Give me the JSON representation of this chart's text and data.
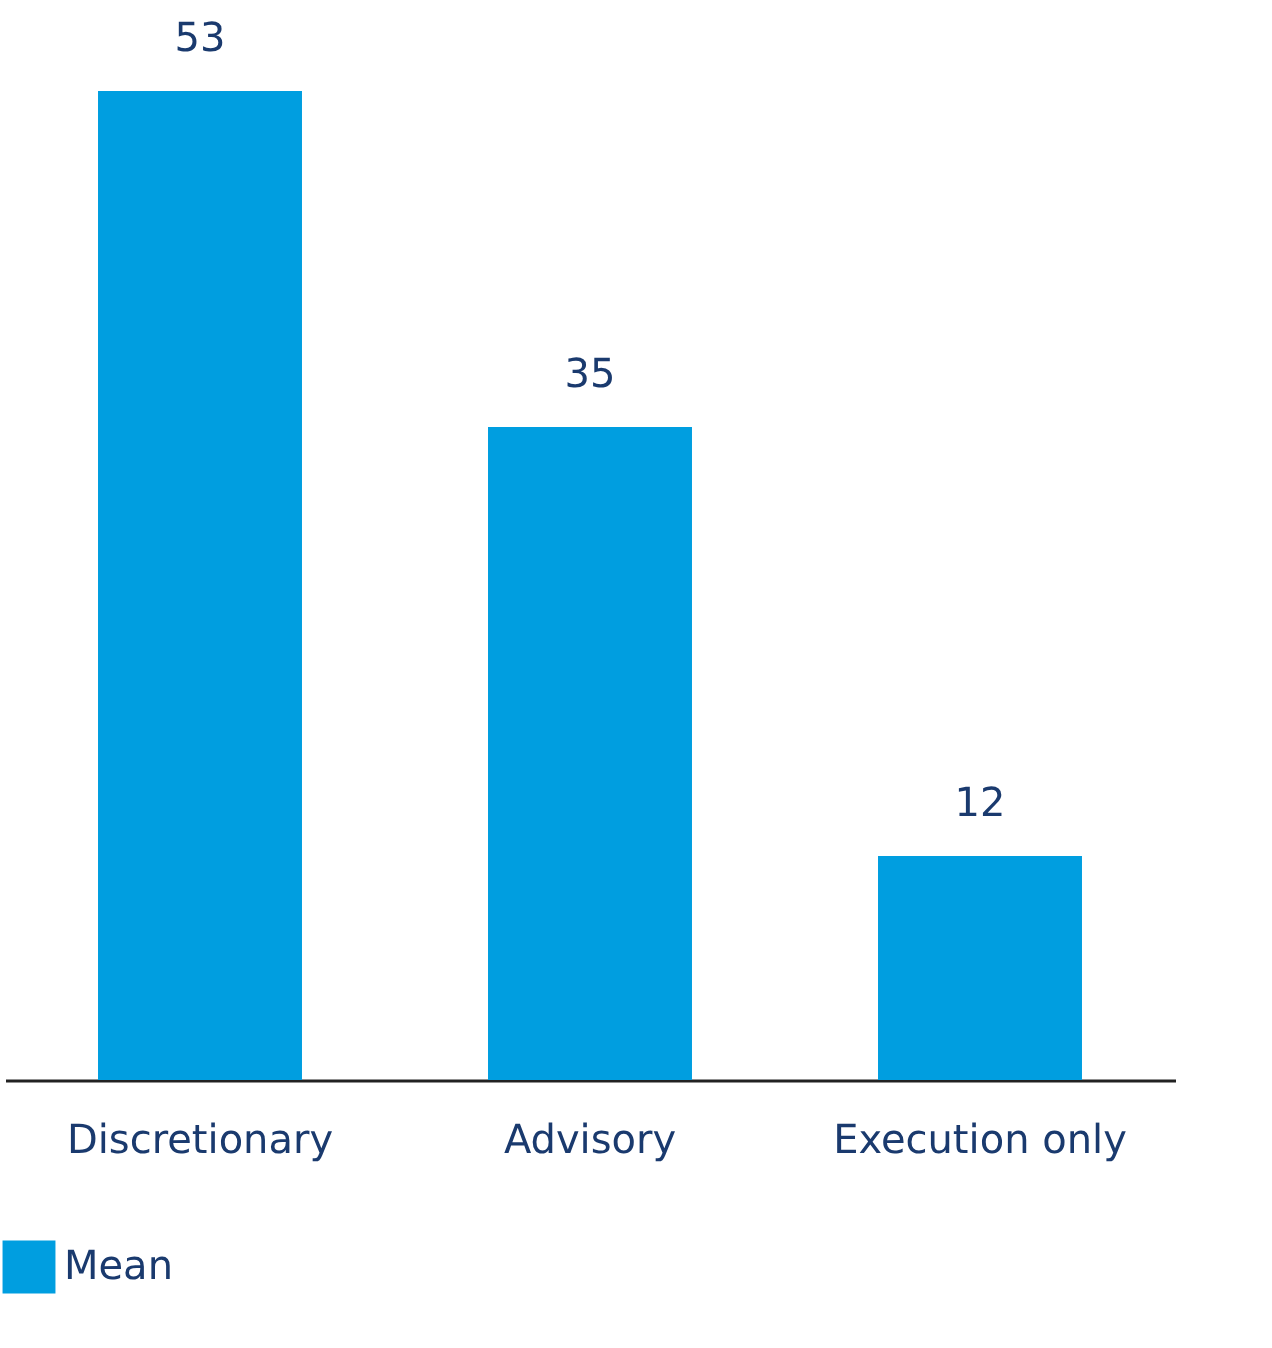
{
  "chart_data": {
    "type": "bar",
    "categories": [
      "Discretionary",
      "Advisory",
      "Execution only"
    ],
    "series": [
      {
        "name": "Mean",
        "color": "#009ee0",
        "values": [
          53,
          35,
          12
        ]
      }
    ],
    "data_labels": true,
    "legend": "bottom left"
  }
}
